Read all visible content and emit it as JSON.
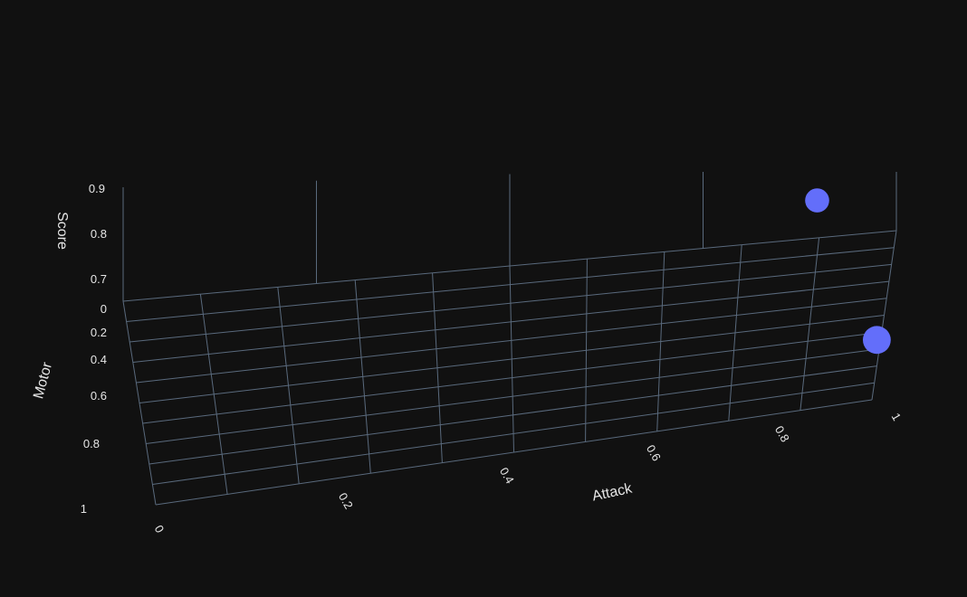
{
  "chart_data": {
    "type": "scatter3d",
    "marker_color": "#636efa",
    "background": "#111111",
    "grid": true,
    "x_axis": {
      "title": "Attack",
      "range": [
        0,
        1
      ],
      "ticks": [
        "0",
        "0.2",
        "0.4",
        "0.6",
        "0.8",
        "1"
      ]
    },
    "y_axis": {
      "title": "Motor",
      "range": [
        0,
        1
      ],
      "ticks": [
        "0",
        "0.2",
        "0.4",
        "0.6",
        "0.8",
        "1"
      ]
    },
    "z_axis": {
      "title": "Score",
      "range": [
        0.65,
        0.95
      ],
      "ticks": [
        "0.7",
        "0.8",
        "0.9"
      ]
    },
    "grid_steps": [
      0,
      0.1,
      0.2,
      0.3,
      0.4,
      0.5,
      0.6,
      0.7,
      0.8,
      0.9,
      1
    ],
    "points": [
      [
        0.9,
        0.1,
        0.81
      ],
      [
        1,
        0.8,
        0.7
      ]
    ]
  }
}
